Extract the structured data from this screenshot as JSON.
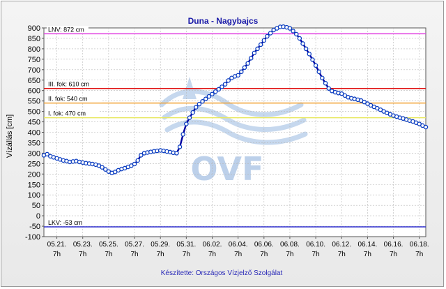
{
  "chart_data": {
    "type": "line",
    "title": "Duna - Nagybajcs",
    "ylabel": "Vízállás [cm]",
    "ylim": [
      -100,
      900
    ],
    "yticks": [
      -100,
      -50,
      0,
      50,
      100,
      150,
      200,
      250,
      300,
      350,
      400,
      450,
      500,
      550,
      600,
      650,
      700,
      750,
      800,
      850,
      900
    ],
    "xlim": [
      0,
      29.5
    ],
    "xticks": [
      {
        "x": 1,
        "date": "05.21.",
        "hour": "7h"
      },
      {
        "x": 3,
        "date": "05.23.",
        "hour": "7h"
      },
      {
        "x": 5,
        "date": "05.25.",
        "hour": "7h"
      },
      {
        "x": 7,
        "date": "05.27.",
        "hour": "7h"
      },
      {
        "x": 9,
        "date": "05.29.",
        "hour": "7h"
      },
      {
        "x": 11,
        "date": "05.31.",
        "hour": "7h"
      },
      {
        "x": 13,
        "date": "06.02.",
        "hour": "7h"
      },
      {
        "x": 15,
        "date": "06.04.",
        "hour": "7h"
      },
      {
        "x": 17,
        "date": "06.06.",
        "hour": "7h"
      },
      {
        "x": 19,
        "date": "06.08.",
        "hour": "7h"
      },
      {
        "x": 21,
        "date": "06.10.",
        "hour": "7h"
      },
      {
        "x": 23,
        "date": "06.12.",
        "hour": "7h"
      },
      {
        "x": 25,
        "date": "06.14.",
        "hour": "7h"
      },
      {
        "x": 27,
        "date": "06.16.",
        "hour": "7h"
      },
      {
        "x": 29,
        "date": "06.18.",
        "hour": "7h"
      }
    ],
    "grid": true,
    "reference_lines": [
      {
        "label": "LNV: 872 cm",
        "value": 872,
        "color": "#e040e0"
      },
      {
        "label": "III. fok: 610 cm",
        "value": 610,
        "color": "#e01010"
      },
      {
        "label": "II. fok: 540 cm",
        "value": 540,
        "color": "#f0a030"
      },
      {
        "label": "I. fok: 470 cm",
        "value": 470,
        "color": "#e8e860"
      },
      {
        "label": "LKV: -53 cm",
        "value": -53,
        "color": "#3030d0"
      }
    ],
    "series": [
      {
        "color": "#0000a0",
        "marker_color": "#0a3cc0",
        "x": [
          0.0,
          0.25,
          0.5,
          0.75,
          1.0,
          1.25,
          1.5,
          1.75,
          2.0,
          2.25,
          2.5,
          2.75,
          3.0,
          3.25,
          3.5,
          3.75,
          4.0,
          4.25,
          4.5,
          4.75,
          5.0,
          5.25,
          5.5,
          5.75,
          6.0,
          6.25,
          6.5,
          6.75,
          7.0,
          7.25,
          7.5,
          7.75,
          8.0,
          8.25,
          8.5,
          8.75,
          9.0,
          9.25,
          9.5,
          9.75,
          10.0,
          10.25,
          10.5,
          10.75,
          11.0,
          11.25,
          11.5,
          11.75,
          12.0,
          12.25,
          12.5,
          12.75,
          13.0,
          13.25,
          13.5,
          13.75,
          14.0,
          14.25,
          14.5,
          14.75,
          15.0,
          15.25,
          15.5,
          15.75,
          16.0,
          16.25,
          16.5,
          16.75,
          17.0,
          17.25,
          17.5,
          17.75,
          18.0,
          18.25,
          18.5,
          18.75,
          19.0,
          19.25,
          19.5,
          19.75,
          20.0,
          20.25,
          20.5,
          20.75,
          21.0,
          21.25,
          21.5,
          21.75,
          22.0,
          22.25,
          22.5,
          22.75,
          23.0,
          23.25,
          23.5,
          23.75,
          24.0,
          24.25,
          24.5,
          24.75,
          25.0,
          25.25,
          25.5,
          25.75,
          26.0,
          26.25,
          26.5,
          26.75,
          27.0,
          27.25,
          27.5,
          27.75,
          28.0,
          28.25,
          28.5,
          28.75,
          29.0,
          29.25,
          29.5
        ],
        "values": [
          290,
          295,
          285,
          280,
          275,
          270,
          265,
          262,
          258,
          260,
          262,
          258,
          255,
          252,
          250,
          248,
          245,
          240,
          232,
          222,
          212,
          205,
          210,
          218,
          224,
          228,
          234,
          240,
          248,
          265,
          290,
          300,
          303,
          306,
          309,
          311,
          313,
          311,
          308,
          305,
          302,
          300,
          330,
          390,
          440,
          470,
          495,
          520,
          535,
          548,
          560,
          572,
          583,
          595,
          606,
          618,
          630,
          648,
          660,
          668,
          673,
          690,
          710,
          730,
          755,
          780,
          800,
          820,
          840,
          860,
          875,
          890,
          898,
          905,
          906,
          903,
          898,
          885,
          870,
          850,
          825,
          800,
          775,
          748,
          720,
          690,
          660,
          635,
          610,
          598,
          592,
          588,
          585,
          576,
          568,
          563,
          560,
          556,
          552,
          545,
          537,
          529,
          522,
          515,
          508,
          500,
          493,
          486,
          480,
          475,
          470,
          466,
          461,
          456,
          452,
          446,
          440,
          432,
          425
        ]
      }
    ]
  },
  "watermark": "OVF",
  "credit": "Készítette: Országos Vízjelző Szolgálat"
}
